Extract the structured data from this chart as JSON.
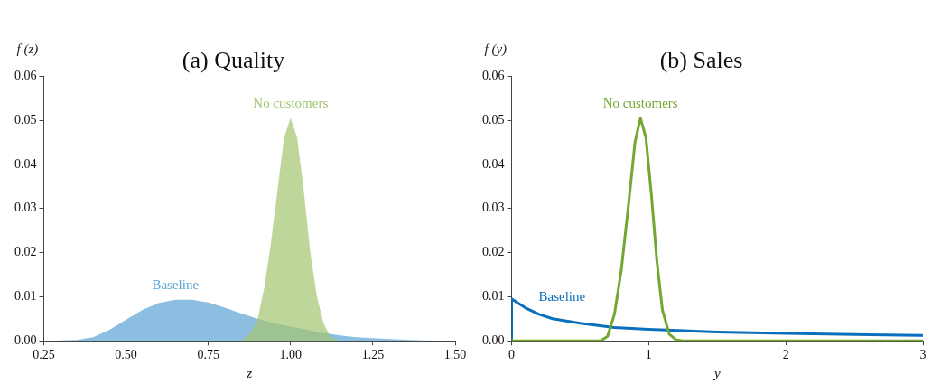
{
  "chart_data": [
    {
      "type": "area",
      "title": "(a) Quality",
      "xlabel": "z",
      "ylabel": "f (z)",
      "xlim": [
        0.25,
        1.5
      ],
      "xticks": [
        {
          "value": 0.25,
          "label": "0.25"
        },
        {
          "value": 0.5,
          "label": "0.50"
        },
        {
          "value": 0.75,
          "label": "0.75"
        },
        {
          "value": 1,
          "label": "1.00"
        },
        {
          "value": 1.25,
          "label": "1.25"
        },
        {
          "value": 1.5,
          "label": "1.50"
        }
      ],
      "ylim": [
        0,
        0.06
      ],
      "yticks": [
        {
          "value": 0,
          "label": "0.00"
        },
        {
          "value": 0.01,
          "label": "0.01"
        },
        {
          "value": 0.02,
          "label": "0.02"
        },
        {
          "value": 0.03,
          "label": "0.03"
        },
        {
          "value": 0.04,
          "label": "0.04"
        },
        {
          "value": 0.05,
          "label": "0.05"
        },
        {
          "value": 0.06,
          "label": "0.06"
        }
      ],
      "grid": false,
      "legend": false,
      "series": [
        {
          "name": "Baseline",
          "color": "#5ba3d6",
          "x": [
            0.25,
            0.35,
            0.4,
            0.45,
            0.5,
            0.55,
            0.6,
            0.65,
            0.7,
            0.75,
            0.8,
            0.85,
            0.9,
            0.95,
            1.0,
            1.05,
            1.1,
            1.15,
            1.2,
            1.25,
            1.3,
            1.4,
            1.5
          ],
          "values": [
            0,
            0.0002,
            0.0008,
            0.0025,
            0.0048,
            0.007,
            0.0086,
            0.0093,
            0.0093,
            0.0087,
            0.0075,
            0.0062,
            0.005,
            0.004,
            0.0032,
            0.0025,
            0.0018,
            0.0012,
            0.0008,
            0.0006,
            0.0004,
            0.0001,
            0
          ]
        },
        {
          "name": "No customers",
          "color": "#a3c46f",
          "x": [
            0.85,
            0.88,
            0.9,
            0.92,
            0.94,
            0.96,
            0.98,
            1.0,
            1.02,
            1.04,
            1.06,
            1.08,
            1.1,
            1.12,
            1.15
          ],
          "values": [
            0,
            0.002,
            0.005,
            0.012,
            0.022,
            0.034,
            0.046,
            0.0505,
            0.046,
            0.034,
            0.02,
            0.01,
            0.004,
            0.001,
            0
          ]
        }
      ]
    },
    {
      "type": "line",
      "title": "(b) Sales",
      "xlabel": "y",
      "ylabel": "f (y)",
      "xlim": [
        0,
        3
      ],
      "xticks": [
        0,
        1,
        2,
        3
      ],
      "ylim": [
        0,
        0.06
      ],
      "yticks": [
        {
          "value": 0,
          "label": "0.00"
        },
        {
          "value": 0.01,
          "label": "0.01"
        },
        {
          "value": 0.02,
          "label": "0.02"
        },
        {
          "value": 0.03,
          "label": "0.03"
        },
        {
          "value": 0.04,
          "label": "0.04"
        },
        {
          "value": 0.05,
          "label": "0.05"
        },
        {
          "value": 0.06,
          "label": "0.06"
        }
      ],
      "grid": false,
      "legend": false,
      "series": [
        {
          "name": "Baseline",
          "color": "#0a6fbd",
          "x": [
            0,
            0,
            0.05,
            0.1,
            0.2,
            0.3,
            0.5,
            0.75,
            1,
            1.5,
            2,
            2.5,
            3
          ],
          "values": [
            0,
            0.0095,
            0.0085,
            0.0075,
            0.006,
            0.005,
            0.004,
            0.003,
            0.0026,
            0.002,
            0.0017,
            0.0014,
            0.0012
          ]
        },
        {
          "name": "No customers",
          "color": "#72a82f",
          "x": [
            0,
            0.65,
            0.7,
            0.75,
            0.8,
            0.85,
            0.9,
            0.94,
            0.98,
            1.02,
            1.06,
            1.1,
            1.15,
            1.2,
            1.25,
            3
          ],
          "values": [
            0,
            0,
            0.001,
            0.006,
            0.016,
            0.03,
            0.045,
            0.0505,
            0.046,
            0.033,
            0.018,
            0.007,
            0.0015,
            0.0002,
            0,
            0
          ]
        }
      ]
    }
  ]
}
